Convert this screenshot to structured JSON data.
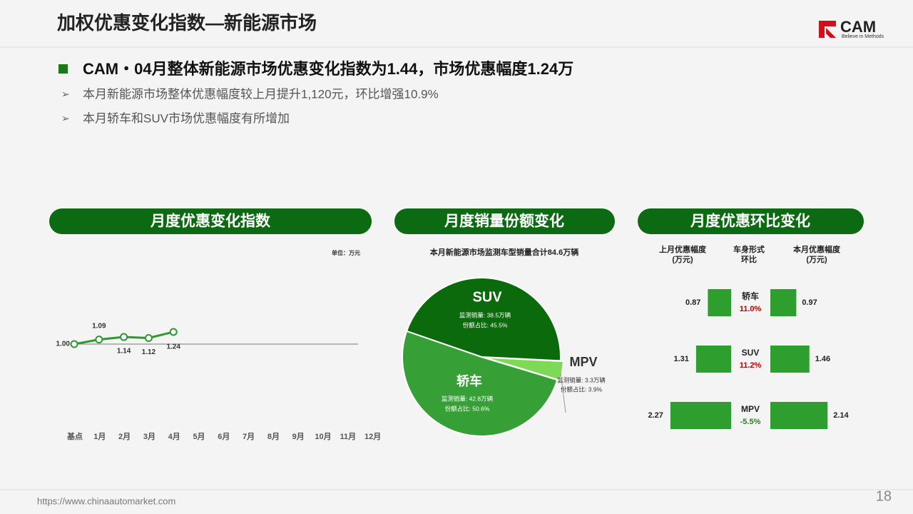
{
  "header": {
    "title": "加权优惠变化指数—新能源市场",
    "logo": "CAM",
    "slogan": "Believe in Methods"
  },
  "headline": "CAM・04月整体新能源市场优惠变化指数为1.44，市场优惠幅度1.24万",
  "bullets": [
    "本月新能源市场整体优惠幅度较上月提升1,120元，环比增强10.9%",
    "本月轿车和SUV市场优惠幅度有所增加"
  ],
  "footer": {
    "url": "https://www.chinaautomarket.com",
    "page": "18"
  },
  "chart_data": [
    {
      "type": "line",
      "title": "月度优惠变化指数",
      "unit": "单位：万元",
      "categories": [
        "基点",
        "1月",
        "2月",
        "3月",
        "4月",
        "5月",
        "6月",
        "7月",
        "8月",
        "9月",
        "10月",
        "11月",
        "12月"
      ],
      "values": [
        1,
        1.09,
        1.14,
        1.12,
        1.24,
        null,
        null,
        null,
        null,
        null,
        null,
        null,
        null
      ],
      "value_labels": [
        "1.00",
        "1.09",
        "1.14",
        "1.12",
        "1.24",
        null,
        null,
        null,
        null,
        null,
        null,
        null,
        null
      ],
      "color": "#2e9a2e",
      "ylim": [
        0,
        3
      ],
      "reference_line": 1
    },
    {
      "type": "pie",
      "title": "月度销量份额变化",
      "subtitle": "本月新能源市场监测车型销量合计84.6万辆",
      "categories": [
        "SUV",
        "MPV",
        "轿车"
      ],
      "values": [
        45.5,
        3.9,
        50.6
      ],
      "value_labels": [
        "份额占比: 45.5%",
        "份额占比: 3.9%",
        "份额占比: 50.6%"
      ],
      "volumes": [
        38.5,
        3.3,
        42.8
      ],
      "volume_labels": [
        "监测销量: 38.5万辆",
        "监测销量: 3.3万辆",
        "监测销量: 42.8万辆"
      ],
      "colors": [
        "#0b6a0b",
        "#7ed957",
        "#36a036"
      ]
    },
    {
      "type": "butterfly_bar",
      "title": "月度优惠环比变化",
      "category_header": "车身形式\n环比",
      "categories": [
        "轿车",
        "SUV",
        "MPV"
      ],
      "series": [
        {
          "name": "上月优惠幅度\n(万元)",
          "color": "#2e9e2e",
          "values": [
            0.87,
            1.31,
            2.27
          ]
        },
        {
          "name": "本月优惠幅度\n(万元)",
          "color": "#2e9e2e",
          "values": [
            0.97,
            1.46,
            2.14
          ]
        }
      ],
      "changes": [
        11,
        11.2,
        -5.5
      ],
      "change_labels": [
        "11.0%",
        "11.2%",
        "-5.5%"
      ],
      "positive_color": "#c00000",
      "negative_color": "#2e7d1e",
      "xlim": [
        0,
        2.4
      ]
    }
  ]
}
